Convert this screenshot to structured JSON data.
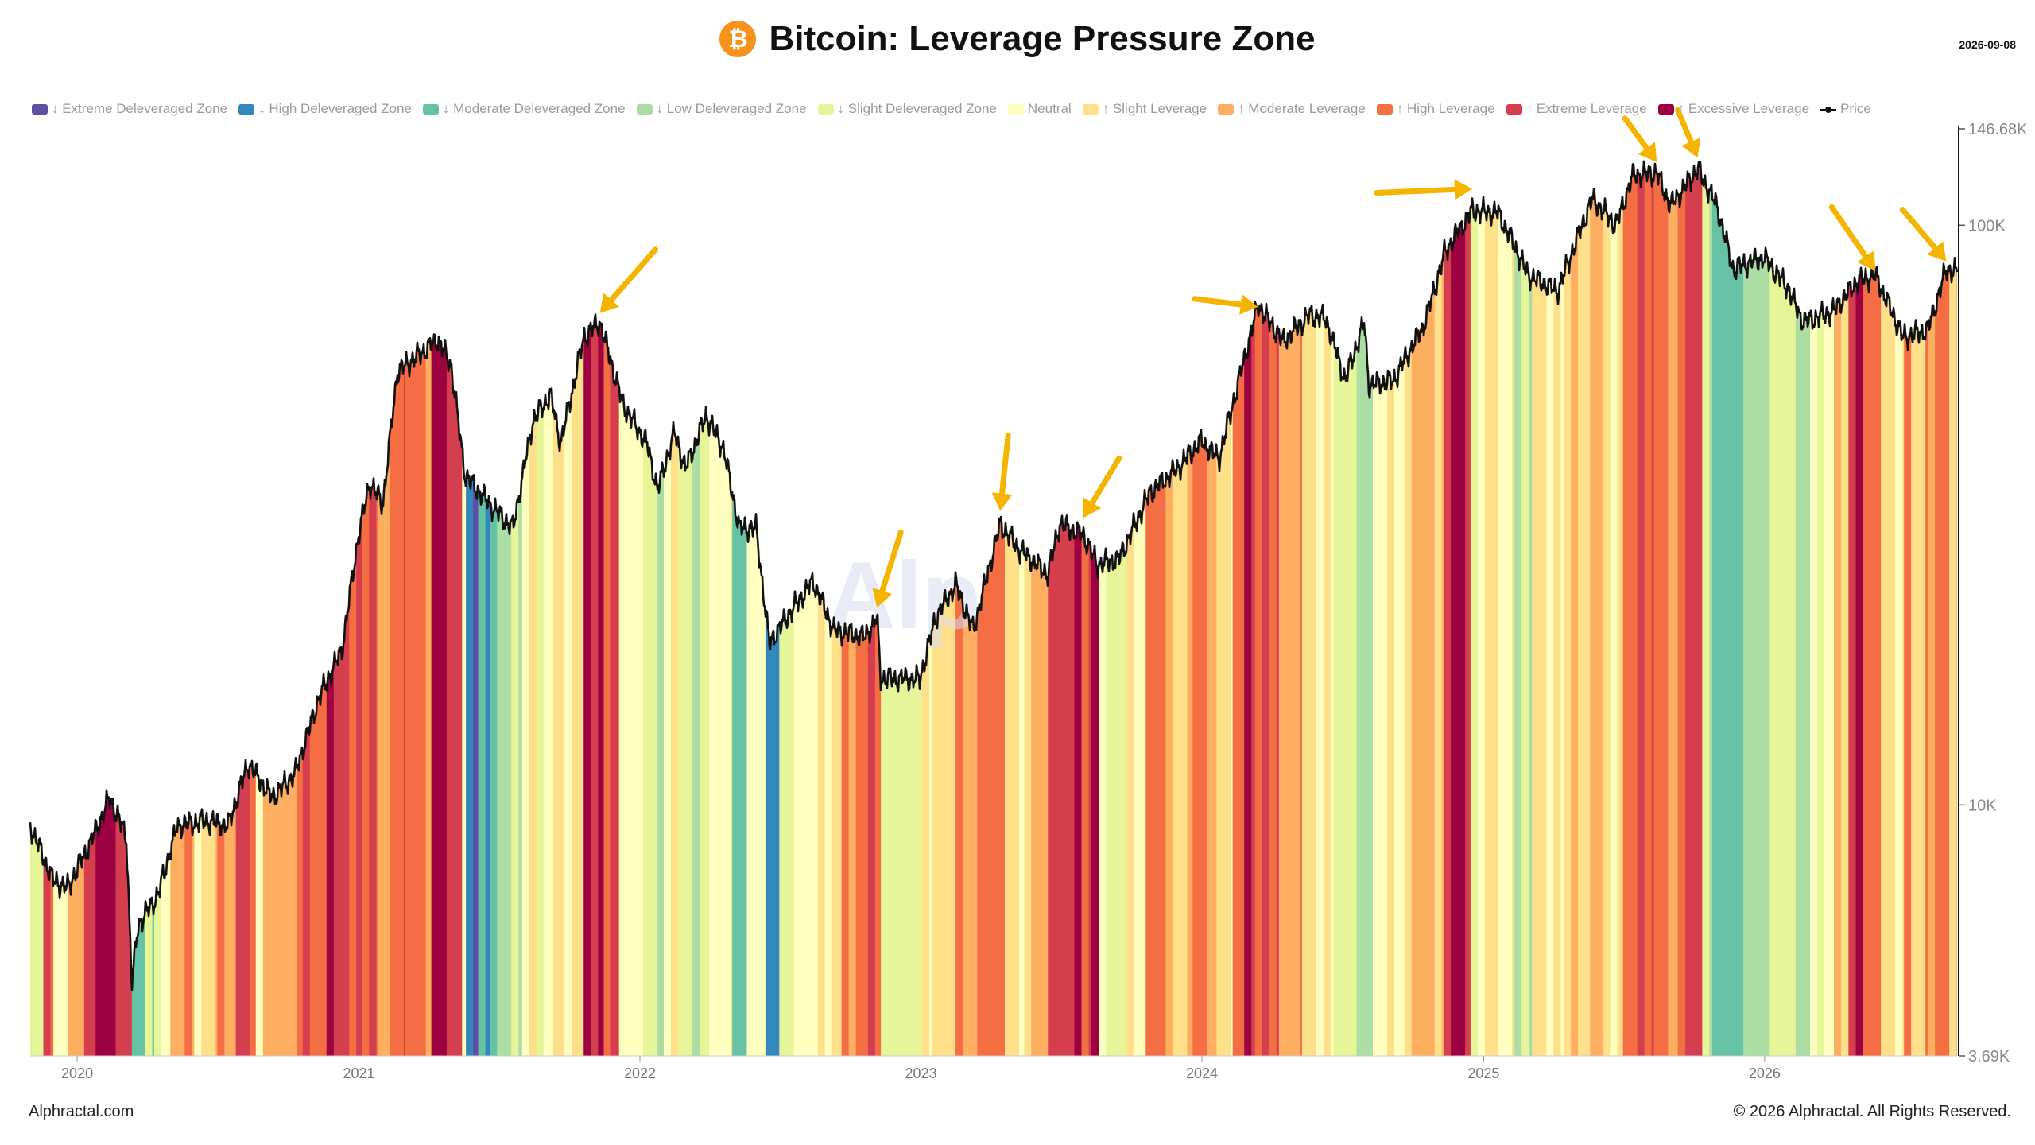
{
  "header": {
    "title": "Bitcoin: Leverage Pressure Zone",
    "date": "2026-09-08",
    "logo_icon": "bitcoin-icon",
    "logo_glyph": "₿"
  },
  "footer": {
    "left": "Alphractal.com",
    "right": "© 2026 Alphractal. All Rights Reserved."
  },
  "watermark": {
    "text": "Alp"
  },
  "chart_data": {
    "type": "area",
    "title": "Bitcoin: Leverage Pressure Zone",
    "legend_position": "top",
    "grid": false,
    "x_ticks": [
      "2020",
      "2021",
      "2022",
      "2023",
      "2024",
      "2025",
      "2026"
    ],
    "y_scale": "log",
    "y_ticks": [
      {
        "value": 146680,
        "label": "146.68K"
      },
      {
        "value": 100000,
        "label": "100K"
      },
      {
        "value": 10000,
        "label": "10K"
      },
      {
        "value": 3690,
        "label": "3.69K"
      }
    ],
    "ylim": [
      3690,
      146680
    ],
    "xlim": [
      "2019-11-01",
      "2026-09-08"
    ],
    "zones": [
      {
        "name": "↓ Extreme Deleveraged Zone",
        "color": "#5e4fa2"
      },
      {
        "name": "↓ High Deleveraged Zone",
        "color": "#3288bd"
      },
      {
        "name": "↓ Moderate Deleveraged Zone",
        "color": "#66c2a5"
      },
      {
        "name": "↓ Low Deleveraged Zone",
        "color": "#abdda4"
      },
      {
        "name": "↓ Slight Deleveraged Zone",
        "color": "#e6f598"
      },
      {
        "name": "Neutral",
        "color": "#ffffbf"
      },
      {
        "name": "↑ Slight Leverage",
        "color": "#fee08b"
      },
      {
        "name": "↑ Moderate Leverage",
        "color": "#fdae61"
      },
      {
        "name": "↑ High Leverage",
        "color": "#f46d43"
      },
      {
        "name": "↑ Extreme Leverage",
        "color": "#d53e4f"
      },
      {
        "name": "↑ Excessive Leverage",
        "color": "#9e0142"
      }
    ],
    "price_series_name": "Price",
    "price": [
      [
        "2019-11-01",
        9200
      ],
      [
        "2019-12-01",
        7400
      ],
      [
        "2019-12-20",
        7200
      ],
      [
        "2020-01-20",
        8700
      ],
      [
        "2020-02-12",
        10300
      ],
      [
        "2020-03-05",
        8800
      ],
      [
        "2020-03-12",
        4900
      ],
      [
        "2020-03-20",
        6200
      ],
      [
        "2020-04-15",
        7000
      ],
      [
        "2020-05-10",
        9200
      ],
      [
        "2020-06-15",
        9400
      ],
      [
        "2020-07-15",
        9200
      ],
      [
        "2020-08-10",
        11800
      ],
      [
        "2020-09-10",
        10300
      ],
      [
        "2020-10-10",
        11300
      ],
      [
        "2020-11-10",
        15300
      ],
      [
        "2020-12-10",
        18500
      ],
      [
        "2020-12-31",
        29000
      ],
      [
        "2021-01-15",
        36000
      ],
      [
        "2021-02-01",
        33000
      ],
      [
        "2021-02-20",
        56000
      ],
      [
        "2021-03-15",
        59000
      ],
      [
        "2021-04-14",
        63500
      ],
      [
        "2021-05-01",
        57000
      ],
      [
        "2021-05-19",
        37000
      ],
      [
        "2021-06-20",
        33000
      ],
      [
        "2021-07-20",
        30000
      ],
      [
        "2021-08-15",
        46000
      ],
      [
        "2021-09-07",
        51000
      ],
      [
        "2021-09-20",
        42000
      ],
      [
        "2021-10-20",
        64000
      ],
      [
        "2021-11-10",
        68000
      ],
      [
        "2021-12-10",
        49000
      ],
      [
        "2022-01-10",
        42000
      ],
      [
        "2022-01-24",
        35000
      ],
      [
        "2022-02-15",
        44000
      ],
      [
        "2022-03-01",
        38000
      ],
      [
        "2022-03-28",
        47000
      ],
      [
        "2022-04-20",
        41000
      ],
      [
        "2022-05-10",
        30000
      ],
      [
        "2022-06-01",
        30000
      ],
      [
        "2022-06-18",
        19000
      ],
      [
        "2022-07-10",
        21000
      ],
      [
        "2022-08-14",
        24300
      ],
      [
        "2022-09-10",
        20000
      ],
      [
        "2022-10-20",
        19500
      ],
      [
        "2022-11-05",
        21000
      ],
      [
        "2022-11-10",
        16500
      ],
      [
        "2022-12-31",
        16500
      ],
      [
        "2023-01-20",
        21000
      ],
      [
        "2023-02-15",
        24000
      ],
      [
        "2023-03-10",
        20000
      ],
      [
        "2023-04-14",
        30500
      ],
      [
        "2023-05-10",
        27500
      ],
      [
        "2023-06-15",
        25000
      ],
      [
        "2023-06-30",
        30500
      ],
      [
        "2023-07-31",
        29200
      ],
      [
        "2023-08-18",
        26000
      ],
      [
        "2023-09-15",
        26500
      ],
      [
        "2023-10-25",
        34500
      ],
      [
        "2023-11-30",
        38000
      ],
      [
        "2023-12-31",
        42500
      ],
      [
        "2024-01-23",
        39500
      ],
      [
        "2024-02-15",
        52000
      ],
      [
        "2024-03-14",
        73000
      ],
      [
        "2024-04-15",
        63000
      ],
      [
        "2024-05-20",
        70000
      ],
      [
        "2024-06-10",
        69000
      ],
      [
        "2024-07-05",
        54000
      ],
      [
        "2024-07-30",
        68000
      ],
      [
        "2024-08-05",
        53000
      ],
      [
        "2024-09-06",
        54000
      ],
      [
        "2024-10-15",
        67000
      ],
      [
        "2024-11-12",
        90000
      ],
      [
        "2024-12-17",
        106000
      ],
      [
        "2025-01-20",
        105000
      ],
      [
        "2025-02-28",
        82000
      ],
      [
        "2025-04-07",
        77000
      ],
      [
        "2025-05-22",
        111000
      ],
      [
        "2025-06-22",
        100000
      ],
      [
        "2025-07-14",
        122000
      ],
      [
        "2025-08-14",
        123000
      ],
      [
        "2025-09-01",
        108000
      ],
      [
        "2025-10-06",
        125000
      ],
      [
        "2025-10-31",
        108000
      ],
      [
        "2025-11-21",
        84000
      ],
      [
        "2025-12-31",
        88000
      ],
      [
        "2026-01-31",
        78000
      ],
      [
        "2026-02-20",
        68000
      ],
      [
        "2026-03-31",
        71000
      ],
      [
        "2026-05-01",
        80000
      ],
      [
        "2026-05-25",
        82000
      ],
      [
        "2026-06-30",
        64000
      ],
      [
        "2026-08-01",
        66000
      ],
      [
        "2026-08-25",
        84000
      ],
      [
        "2026-09-08",
        83000
      ]
    ],
    "zone_bands": [
      [
        "2019-11-01",
        5
      ],
      [
        "2019-11-18",
        9
      ],
      [
        "2019-12-01",
        6
      ],
      [
        "2019-12-20",
        7
      ],
      [
        "2020-01-10",
        8
      ],
      [
        "2020-01-25",
        10
      ],
      [
        "2020-02-20",
        9
      ],
      [
        "2020-03-12",
        2
      ],
      [
        "2020-03-20",
        3
      ],
      [
        "2020-04-10",
        5
      ],
      [
        "2020-05-01",
        7
      ],
      [
        "2020-06-01",
        6
      ],
      [
        "2020-07-01",
        7
      ],
      [
        "2020-07-25",
        8
      ],
      [
        "2020-08-20",
        6
      ],
      [
        "2020-09-15",
        7
      ],
      [
        "2020-10-20",
        8
      ],
      [
        "2020-11-20",
        9
      ],
      [
        "2020-12-10",
        8
      ],
      [
        "2021-01-05",
        9
      ],
      [
        "2021-01-25",
        7
      ],
      [
        "2021-02-10",
        9
      ],
      [
        "2021-03-01",
        8
      ],
      [
        "2021-04-05",
        10
      ],
      [
        "2021-04-25",
        9
      ],
      [
        "2021-05-15",
        5
      ],
      [
        "2021-05-20",
        1
      ],
      [
        "2021-06-05",
        2
      ],
      [
        "2021-06-20",
        3
      ],
      [
        "2021-08-01",
        5
      ],
      [
        "2021-09-01",
        6
      ],
      [
        "2021-09-25",
        5
      ],
      [
        "2021-10-10",
        7
      ],
      [
        "2021-10-20",
        9
      ],
      [
        "2021-11-15",
        8
      ],
      [
        "2021-12-05",
        5
      ],
      [
        "2022-01-05",
        4
      ],
      [
        "2022-02-01",
        5
      ],
      [
        "2022-03-01",
        4
      ],
      [
        "2022-04-01",
        5
      ],
      [
        "2022-05-01",
        3
      ],
      [
        "2022-05-20",
        5
      ],
      [
        "2022-06-13",
        1
      ],
      [
        "2022-07-01",
        4
      ],
      [
        "2022-07-20",
        5
      ],
      [
        "2022-08-20",
        6
      ],
      [
        "2022-09-20",
        7
      ],
      [
        "2022-10-15",
        8
      ],
      [
        "2022-11-10",
        4
      ],
      [
        "2022-12-15",
        5
      ],
      [
        "2023-01-15",
        6
      ],
      [
        "2023-02-15",
        7
      ],
      [
        "2023-03-15",
        8
      ],
      [
        "2023-04-20",
        6
      ],
      [
        "2023-05-15",
        7
      ],
      [
        "2023-06-15",
        9
      ],
      [
        "2023-07-10",
        9
      ],
      [
        "2023-08-10",
        10
      ],
      [
        "2023-08-20",
        5
      ],
      [
        "2023-09-25",
        6
      ],
      [
        "2023-10-20",
        8
      ],
      [
        "2023-11-15",
        7
      ],
      [
        "2023-12-20",
        8
      ],
      [
        "2024-01-20",
        6
      ],
      [
        "2024-02-10",
        8
      ],
      [
        "2024-02-25",
        10
      ],
      [
        "2024-03-10",
        9
      ],
      [
        "2024-04-10",
        7
      ],
      [
        "2024-05-10",
        6
      ],
      [
        "2024-06-20",
        4
      ],
      [
        "2024-07-20",
        3
      ],
      [
        "2024-08-10",
        5
      ],
      [
        "2024-09-20",
        6
      ],
      [
        "2024-10-20",
        7
      ],
      [
        "2024-11-10",
        10
      ],
      [
        "2024-12-15",
        5
      ],
      [
        "2025-01-10",
        6
      ],
      [
        "2025-02-10",
        3
      ],
      [
        "2025-03-05",
        5
      ],
      [
        "2025-04-15",
        6
      ],
      [
        "2025-05-10",
        7
      ],
      [
        "2025-06-05",
        6
      ],
      [
        "2025-07-01",
        9
      ],
      [
        "2025-08-10",
        8
      ],
      [
        "2025-09-01",
        7
      ],
      [
        "2025-09-20",
        9
      ],
      [
        "2025-10-12",
        4
      ],
      [
        "2025-10-25",
        2
      ],
      [
        "2025-11-25",
        3
      ],
      [
        "2025-12-20",
        4
      ],
      [
        "2026-02-01",
        3
      ],
      [
        "2026-03-01",
        5
      ],
      [
        "2026-04-01",
        7
      ],
      [
        "2026-04-20",
        9
      ],
      [
        "2026-05-10",
        8
      ],
      [
        "2026-06-01",
        6
      ],
      [
        "2026-07-01",
        7
      ],
      [
        "2026-08-01",
        7
      ]
    ],
    "highlight_arrows": [
      [
        "2021-11-10",
        68000
      ],
      [
        "2022-11-05",
        21000
      ],
      [
        "2023-04-14",
        30500
      ],
      [
        "2023-07-31",
        29200
      ],
      [
        "2024-03-14",
        73000
      ],
      [
        "2024-12-17",
        106000
      ],
      [
        "2025-08-14",
        123000
      ],
      [
        "2025-10-06",
        125000
      ],
      [
        "2026-05-25",
        82000
      ],
      [
        "2026-08-25",
        84000
      ]
    ]
  }
}
